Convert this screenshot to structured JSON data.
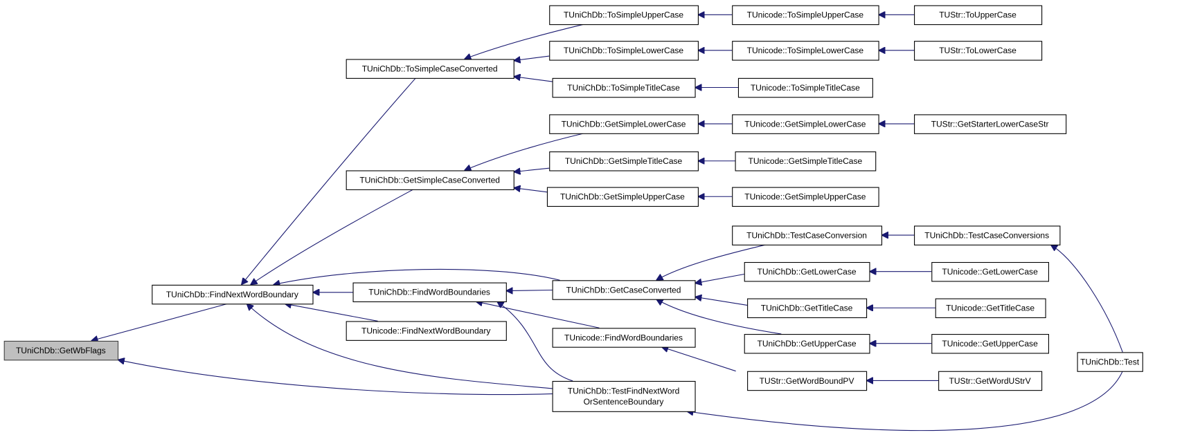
{
  "graph": {
    "type": "caller-graph",
    "edge_color": "#191970",
    "current_node_fill": "#bfbfbf",
    "nodes": [
      {
        "id": "getwbflags",
        "lines": [
          "TUniChDb::GetWbFlags"
        ],
        "current": true
      },
      {
        "id": "fnwb",
        "lines": [
          "TUniChDb::FindNextWordBoundary"
        ]
      },
      {
        "id": "tscc",
        "lines": [
          "TUniChDb::ToSimpleCaseConverted"
        ]
      },
      {
        "id": "gscc",
        "lines": [
          "TUniChDb::GetSimpleCaseConverted"
        ]
      },
      {
        "id": "fwb",
        "lines": [
          "TUniChDb::FindWordBoundaries"
        ]
      },
      {
        "id": "ufnwb",
        "lines": [
          "TUnicode::FindNextWordBoundary"
        ]
      },
      {
        "id": "gcc",
        "lines": [
          "TUniChDb::GetCaseConverted"
        ]
      },
      {
        "id": "ufwb",
        "lines": [
          "TUnicode::FindWordBoundaries"
        ]
      },
      {
        "id": "tfnw",
        "lines": [
          "TUniChDb::TestFindNextWord",
          "OrSentenceBoundary"
        ]
      },
      {
        "id": "tsuc",
        "lines": [
          "TUniChDb::ToSimpleUpperCase"
        ]
      },
      {
        "id": "tslc",
        "lines": [
          "TUniChDb::ToSimpleLowerCase"
        ]
      },
      {
        "id": "tstc",
        "lines": [
          "TUniChDb::ToSimpleTitleCase"
        ]
      },
      {
        "id": "gslc",
        "lines": [
          "TUniChDb::GetSimpleLowerCase"
        ]
      },
      {
        "id": "gstc",
        "lines": [
          "TUniChDb::GetSimpleTitleCase"
        ]
      },
      {
        "id": "gsuc",
        "lines": [
          "TUniChDb::GetSimpleUpperCase"
        ]
      },
      {
        "id": "utsuc",
        "lines": [
          "TUnicode::ToSimpleUpperCase"
        ]
      },
      {
        "id": "utslc",
        "lines": [
          "TUnicode::ToSimpleLowerCase"
        ]
      },
      {
        "id": "utstc",
        "lines": [
          "TUnicode::ToSimpleTitleCase"
        ]
      },
      {
        "id": "ugslc",
        "lines": [
          "TUnicode::GetSimpleLowerCase"
        ]
      },
      {
        "id": "ugstc",
        "lines": [
          "TUnicode::GetSimpleTitleCase"
        ]
      },
      {
        "id": "ugsuc",
        "lines": [
          "TUnicode::GetSimpleUpperCase"
        ]
      },
      {
        "id": "stoupper",
        "lines": [
          "TUStr::ToUpperCase"
        ]
      },
      {
        "id": "stolower",
        "lines": [
          "TUStr::ToLowerCase"
        ]
      },
      {
        "id": "sgslcs",
        "lines": [
          "TUStr::GetStarterLowerCaseStr"
        ]
      },
      {
        "id": "tcc",
        "lines": [
          "TUniChDb::TestCaseConversion"
        ]
      },
      {
        "id": "tccs",
        "lines": [
          "TUniChDb::TestCaseConversions"
        ]
      },
      {
        "id": "glc",
        "lines": [
          "TUniChDb::GetLowerCase"
        ]
      },
      {
        "id": "gtc",
        "lines": [
          "TUniChDb::GetTitleCase"
        ]
      },
      {
        "id": "guc",
        "lines": [
          "TUniChDb::GetUpperCase"
        ]
      },
      {
        "id": "sgwbpv",
        "lines": [
          "TUStr::GetWordBoundPV"
        ]
      },
      {
        "id": "uglc",
        "lines": [
          "TUnicode::GetLowerCase"
        ]
      },
      {
        "id": "ugtc",
        "lines": [
          "TUnicode::GetTitleCase"
        ]
      },
      {
        "id": "uguc",
        "lines": [
          "TUnicode::GetUpperCase"
        ]
      },
      {
        "id": "sgwusv",
        "lines": [
          "TUStr::GetWordUStrV"
        ]
      },
      {
        "id": "test",
        "lines": [
          "TUniChDb::Test"
        ]
      }
    ],
    "edges": [
      {
        "caller": "fnwb",
        "callee": "getwbflags"
      },
      {
        "caller": "tfnw",
        "callee": "getwbflags"
      },
      {
        "caller": "tscc",
        "callee": "fnwb"
      },
      {
        "caller": "gscc",
        "callee": "fnwb"
      },
      {
        "caller": "gcc",
        "callee": "fnwb"
      },
      {
        "caller": "fwb",
        "callee": "fnwb"
      },
      {
        "caller": "ufnwb",
        "callee": "fnwb"
      },
      {
        "caller": "tfnw",
        "callee": "fnwb"
      },
      {
        "caller": "tsuc",
        "callee": "tscc"
      },
      {
        "caller": "tslc",
        "callee": "tscc"
      },
      {
        "caller": "tstc",
        "callee": "tscc"
      },
      {
        "caller": "gslc",
        "callee": "gscc"
      },
      {
        "caller": "gstc",
        "callee": "gscc"
      },
      {
        "caller": "gsuc",
        "callee": "gscc"
      },
      {
        "caller": "gcc",
        "callee": "fwb"
      },
      {
        "caller": "ufwb",
        "callee": "fwb"
      },
      {
        "caller": "tfnw",
        "callee": "fwb"
      },
      {
        "caller": "utsuc",
        "callee": "tsuc"
      },
      {
        "caller": "utslc",
        "callee": "tslc"
      },
      {
        "caller": "utstc",
        "callee": "tstc"
      },
      {
        "caller": "ugslc",
        "callee": "gslc"
      },
      {
        "caller": "ugstc",
        "callee": "gstc"
      },
      {
        "caller": "ugsuc",
        "callee": "gsuc"
      },
      {
        "caller": "stoupper",
        "callee": "utsuc"
      },
      {
        "caller": "stolower",
        "callee": "utslc"
      },
      {
        "caller": "sgslcs",
        "callee": "ugslc"
      },
      {
        "caller": "tcc",
        "callee": "gcc"
      },
      {
        "caller": "glc",
        "callee": "gcc"
      },
      {
        "caller": "gtc",
        "callee": "gcc"
      },
      {
        "caller": "guc",
        "callee": "gcc"
      },
      {
        "caller": "tccs",
        "callee": "tcc"
      },
      {
        "caller": "uglc",
        "callee": "glc"
      },
      {
        "caller": "ugtc",
        "callee": "gtc"
      },
      {
        "caller": "uguc",
        "callee": "guc"
      },
      {
        "caller": "sgwbpv",
        "callee": "ufwb"
      },
      {
        "caller": "sgwusv",
        "callee": "sgwbpv"
      },
      {
        "caller": "test",
        "callee": "tccs"
      },
      {
        "caller": "test",
        "callee": "tfnw"
      }
    ]
  }
}
